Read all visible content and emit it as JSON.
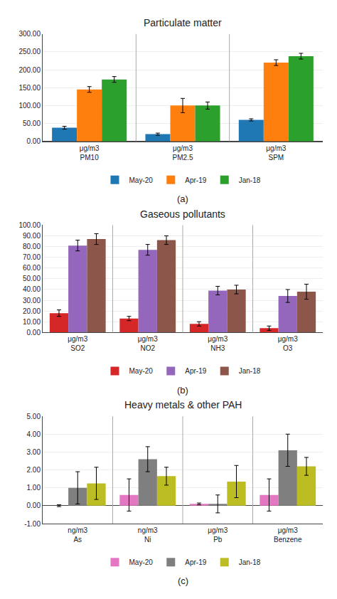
{
  "chart_data": [
    {
      "type": "bar",
      "title": "Particulate matter",
      "subtitle": "(a)",
      "categories": [
        "PM10",
        "PM2.5",
        "SPM"
      ],
      "annotations": [
        {
          "x": "PM10",
          "text": "μg/m3"
        },
        {
          "x": "PM2.5",
          "text": "μg/m3"
        },
        {
          "x": "SPM",
          "text": "μg/m3"
        }
      ],
      "series": [
        {
          "name": "May-20",
          "values": [
            38,
            20,
            60
          ],
          "errors": [
            4,
            3,
            3
          ]
        },
        {
          "name": "Apr-19",
          "values": [
            145,
            100,
            220
          ],
          "errors": [
            8,
            20,
            8
          ]
        },
        {
          "name": "Jan-18",
          "values": [
            173,
            100,
            238
          ],
          "errors": [
            8,
            10,
            8
          ]
        }
      ],
      "ylim": [
        0,
        300
      ],
      "yticks": [
        {
          "value": 0,
          "label": "0.00"
        },
        {
          "value": 50,
          "label": "50.00"
        },
        {
          "value": 100,
          "label": "100.00"
        },
        {
          "value": 150,
          "label": "150.00"
        },
        {
          "value": 200,
          "label": "200.00"
        },
        {
          "value": 250,
          "label": "250.00"
        },
        {
          "value": 300,
          "label": "300.00"
        }
      ],
      "grid": true,
      "legend": "bottom"
    },
    {
      "type": "bar",
      "title": "Gaseous pollutants",
      "subtitle": "(b)",
      "categories": [
        "SO2",
        "NO2",
        "NH3",
        "O3"
      ],
      "annotations": [
        {
          "x": "SO2",
          "text": "μg/m3"
        },
        {
          "x": "NO2",
          "text": "μg/m3"
        },
        {
          "x": "NH3",
          "text": "μg/m3"
        },
        {
          "x": "O3",
          "text": "μg/m3"
        }
      ],
      "series": [
        {
          "name": "May-20",
          "values": [
            18,
            13,
            8,
            4
          ],
          "errors": [
            3,
            2,
            2,
            2
          ]
        },
        {
          "name": "Apr-19",
          "values": [
            81,
            77,
            39,
            34
          ],
          "errors": [
            5,
            5,
            4,
            6
          ]
        },
        {
          "name": "Jan-18",
          "values": [
            87,
            86,
            40,
            38
          ],
          "errors": [
            5,
            4,
            4,
            7
          ]
        }
      ],
      "ylim": [
        0,
        100
      ],
      "yticks": [
        {
          "value": 0,
          "label": "0.00"
        },
        {
          "value": 10,
          "label": "10.00"
        },
        {
          "value": 20,
          "label": "20.00"
        },
        {
          "value": 30,
          "label": "30.00"
        },
        {
          "value": 40,
          "label": "40.00"
        },
        {
          "value": 50,
          "label": "50.00"
        },
        {
          "value": 60,
          "label": "60.00"
        },
        {
          "value": 70,
          "label": "70.00"
        },
        {
          "value": 80,
          "label": "80.00"
        },
        {
          "value": 90,
          "label": "90.00"
        },
        {
          "value": 100,
          "label": "100.00"
        }
      ],
      "grid": true,
      "legend": "bottom"
    },
    {
      "type": "bar",
      "title": "Heavy metals & other PAH",
      "subtitle": "(c)",
      "categories": [
        "As",
        "Ni",
        "Pb",
        "Benzene"
      ],
      "annotations": [
        {
          "x": "As",
          "text": "ng/m3"
        },
        {
          "x": "Ni",
          "text": "ng/m3"
        },
        {
          "x": "Pb",
          "text": "μg/m3"
        },
        {
          "x": "Benzene",
          "text": "μg/m3"
        }
      ],
      "series": [
        {
          "name": "May-20",
          "values": [
            0.0,
            0.6,
            0.1,
            0.6
          ],
          "errors": [
            0.05,
            0.9,
            0.05,
            0.9
          ]
        },
        {
          "name": "Apr-19",
          "values": [
            1.0,
            2.6,
            0.1,
            3.1
          ],
          "errors": [
            0.9,
            0.7,
            0.5,
            0.9
          ]
        },
        {
          "name": "Jan-18",
          "values": [
            1.25,
            1.65,
            1.35,
            2.2
          ],
          "errors": [
            0.9,
            0.5,
            0.9,
            0.5
          ]
        }
      ],
      "ylim": [
        -1,
        5
      ],
      "yticks": [
        {
          "value": -1,
          "label": "-1.00"
        },
        {
          "value": 0,
          "label": "0.00"
        },
        {
          "value": 1,
          "label": "1.00"
        },
        {
          "value": 2,
          "label": "2.00"
        },
        {
          "value": 3,
          "label": "3.00"
        },
        {
          "value": 4,
          "label": "4.00"
        },
        {
          "value": 5,
          "label": "5.00"
        }
      ],
      "grid": true,
      "legend": "bottom"
    }
  ]
}
